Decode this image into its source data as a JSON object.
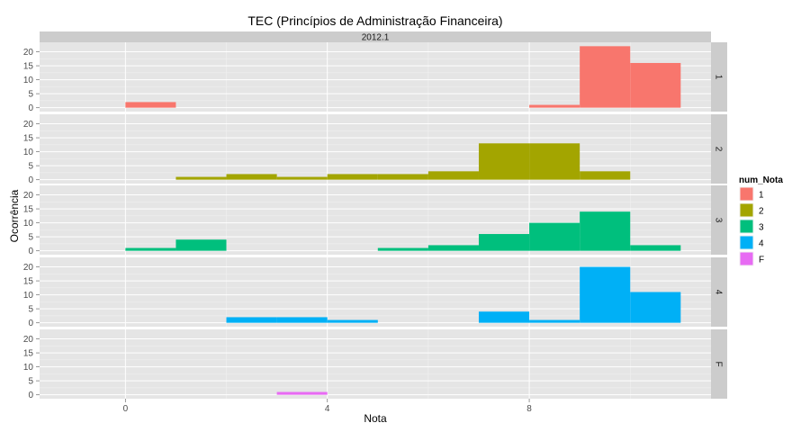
{
  "chart_data": {
    "type": "histogram",
    "title": "TEC (Princípios de Administração Financeira)",
    "xlabel": "Nota",
    "ylabel": "Ocorrência",
    "column_facet": "2012.1",
    "xlim": [
      -1.7,
      11.6
    ],
    "ylim": [
      -1.4,
      23.4
    ],
    "x_ticks": [
      0,
      4,
      8
    ],
    "y_ticks": [
      0,
      5,
      10,
      15,
      20
    ],
    "bin_width": 1,
    "grid": true,
    "legend": {
      "title": "num_Nota",
      "position": "right",
      "entries": [
        {
          "label": "1",
          "color": "#F8766D"
        },
        {
          "label": "2",
          "color": "#A3A500"
        },
        {
          "label": "3",
          "color": "#00BF7D"
        },
        {
          "label": "4",
          "color": "#00B0F6"
        },
        {
          "label": "F",
          "color": "#E76BF3"
        }
      ]
    },
    "series": [
      {
        "name": "1",
        "color": "#F8766D",
        "bins": [
          {
            "x": 0,
            "count": 2
          },
          {
            "x": 8,
            "count": 1
          },
          {
            "x": 9,
            "count": 22
          },
          {
            "x": 10,
            "count": 16
          }
        ]
      },
      {
        "name": "2",
        "color": "#A3A500",
        "bins": [
          {
            "x": 1,
            "count": 1
          },
          {
            "x": 2,
            "count": 2
          },
          {
            "x": 3,
            "count": 1
          },
          {
            "x": 4,
            "count": 2
          },
          {
            "x": 5,
            "count": 2
          },
          {
            "x": 6,
            "count": 3
          },
          {
            "x": 7,
            "count": 13
          },
          {
            "x": 8,
            "count": 13
          },
          {
            "x": 9,
            "count": 3
          }
        ]
      },
      {
        "name": "3",
        "color": "#00BF7D",
        "bins": [
          {
            "x": 0,
            "count": 1
          },
          {
            "x": 1,
            "count": 4
          },
          {
            "x": 5,
            "count": 1
          },
          {
            "x": 6,
            "count": 2
          },
          {
            "x": 7,
            "count": 6
          },
          {
            "x": 8,
            "count": 10
          },
          {
            "x": 9,
            "count": 14
          },
          {
            "x": 10,
            "count": 2
          }
        ]
      },
      {
        "name": "4",
        "color": "#00B0F6",
        "bins": [
          {
            "x": 2,
            "count": 2
          },
          {
            "x": 3,
            "count": 2
          },
          {
            "x": 4,
            "count": 1
          },
          {
            "x": 7,
            "count": 4
          },
          {
            "x": 8,
            "count": 1
          },
          {
            "x": 9,
            "count": 20
          },
          {
            "x": 10,
            "count": 11
          }
        ]
      },
      {
        "name": "F",
        "color": "#E76BF3",
        "bins": [
          {
            "x": 3,
            "count": 1
          }
        ]
      }
    ]
  }
}
